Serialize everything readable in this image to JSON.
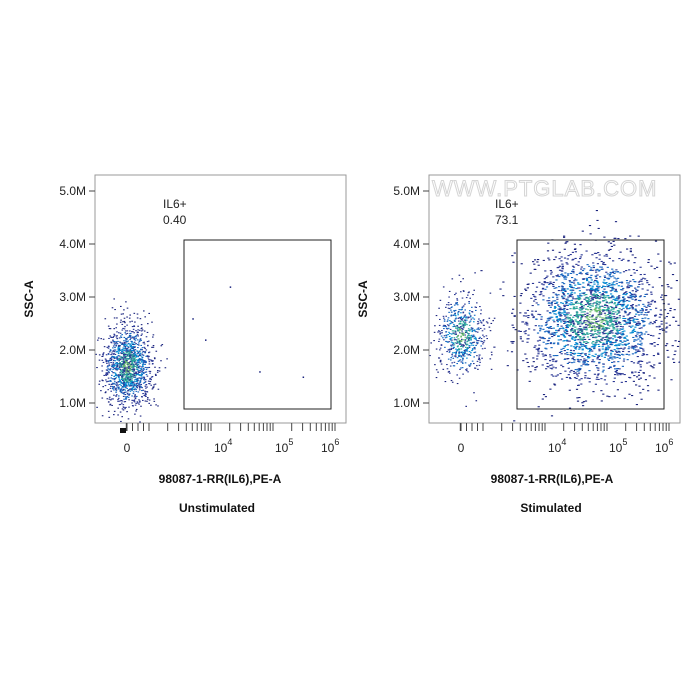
{
  "watermark": "WWW.PTGLAB.COM",
  "chart_data": [
    {
      "type": "scatter",
      "subtype": "density-dot-plot",
      "title": "Unstimulated",
      "xlabel": "98087-1-RR(IL6),PE-A",
      "ylabel": "SSC-A",
      "x_scale": "biexponential",
      "x_ticks": [
        {
          "base": "0",
          "exp": ""
        },
        {
          "base": "10",
          "exp": "4"
        },
        {
          "base": "10",
          "exp": "5"
        },
        {
          "base": "10",
          "exp": "6"
        }
      ],
      "y_ticks": [
        "1.0M",
        "2.0M",
        "3.0M",
        "4.0M",
        "5.0M"
      ],
      "ylim": [
        700000,
        5500000
      ],
      "gate": {
        "name": "IL6+",
        "percent": "0.40",
        "x_range": [
          3000,
          1000000
        ],
        "y_range": [
          900000,
          4100000
        ]
      },
      "populations": [
        {
          "x_center": 0,
          "y_center": 1700000,
          "events": 1400
        }
      ],
      "outliers": [
        [
          20000,
          3200000
        ],
        [
          5000,
          2600000
        ],
        [
          8000,
          2200000
        ],
        [
          60000,
          1600000
        ],
        [
          300000,
          1500000
        ]
      ]
    },
    {
      "type": "scatter",
      "subtype": "density-dot-plot",
      "title": "Stimulated",
      "xlabel": "98087-1-RR(IL6),PE-A",
      "ylabel": "SSC-A",
      "x_scale": "biexponential",
      "x_ticks": [
        {
          "base": "0",
          "exp": ""
        },
        {
          "base": "10",
          "exp": "4"
        },
        {
          "base": "10",
          "exp": "5"
        },
        {
          "base": "10",
          "exp": "6"
        }
      ],
      "y_ticks": [
        "1.0M",
        "2.0M",
        "3.0M",
        "4.0M",
        "5.0M"
      ],
      "ylim": [
        700000,
        5500000
      ],
      "gate": {
        "name": "IL6+",
        "percent": "73.1",
        "x_range": [
          3000,
          1000000
        ],
        "y_range": [
          900000,
          4100000
        ]
      },
      "populations": [
        {
          "x_center": 0,
          "y_center": 2300000,
          "events": 600
        },
        {
          "x_center": 60000,
          "y_center": 2600000,
          "events": 2200
        }
      ],
      "outliers": []
    }
  ]
}
